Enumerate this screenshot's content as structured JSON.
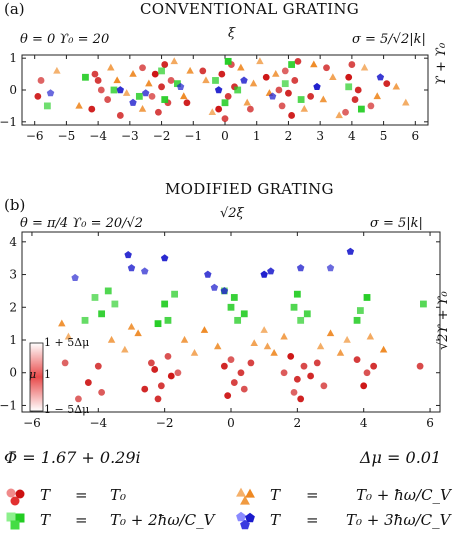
{
  "figure": {
    "panel_a": {
      "label": "(a)",
      "title": "CONVENTIONAL GRATING",
      "params_left": "θ = 0  ϒ₀ = 20",
      "xlabel": "ξ",
      "params_right": "σ = 5/√2|k|",
      "ylabel": "ϒ + ϒ₀"
    },
    "panel_b": {
      "label": "(b)",
      "title": "MODIFIED GRATING",
      "params_left": "θ = π/4   ϒ₀ = 20/√2",
      "xlabel": "√2ξ",
      "params_right": "σ = 5|k|",
      "ylabel": "√2ϒ + ϒ₀",
      "colorbar": {
        "top_label": "1 + 5Δμ",
        "mid_label": "μ",
        "mid_value": "1",
        "bottom_label": "1 − 5Δμ"
      }
    },
    "phi_label": "Φ̄ = 1.67 + 0.29i",
    "dmu_label": "Δμ = 0.01",
    "legend": [
      {
        "lhs": "T",
        "eq": "=",
        "rhs": "T₀",
        "color": "#cc1111",
        "marker": "circle"
      },
      {
        "lhs": "T",
        "eq": "=",
        "rhs": "T₀ + ħω/C_V",
        "color": "#ee8822",
        "marker": "triangle"
      },
      {
        "lhs": "T",
        "eq": "=",
        "rhs": "T₀ + 2ħω/C_V",
        "color": "#22cc22",
        "marker": "square"
      },
      {
        "lhs": "T",
        "eq": "=",
        "rhs": "T₀ + 3ħω/C_V",
        "color": "#1a1acc",
        "marker": "pentagon"
      }
    ]
  },
  "chart_data": [
    {
      "type": "scatter",
      "title": "CONVENTIONAL GRATING",
      "xlabel": "ξ",
      "ylabel": "ϒ + ϒ₀",
      "xlim": [
        -6.4,
        6.4
      ],
      "ylim": [
        -1.1,
        1.1
      ],
      "xticks": [
        -6,
        -5,
        -4,
        -3,
        -2,
        -1,
        0,
        1,
        2,
        3,
        4,
        5,
        6
      ],
      "yticks": [
        -1,
        0,
        1
      ],
      "series": [
        {
          "marker": "circle",
          "color": "#cc1111",
          "points": [
            [
              -5.8,
              0.3
            ],
            [
              -5.9,
              -0.2
            ],
            [
              -4.1,
              0.5
            ],
            [
              -3.9,
              0.0
            ],
            [
              -4.2,
              -0.6
            ],
            [
              -4.0,
              0.3
            ],
            [
              -3.7,
              -0.3
            ],
            [
              -2.2,
              0.5
            ],
            [
              -2.0,
              0.1
            ],
            [
              -1.8,
              -0.4
            ],
            [
              -2.3,
              -0.2
            ],
            [
              -1.9,
              0.8
            ],
            [
              -2.1,
              -0.7
            ],
            [
              -1.7,
              0.3
            ],
            [
              -0.1,
              0.5
            ],
            [
              0.1,
              -0.2
            ],
            [
              0.2,
              0.8
            ],
            [
              -0.2,
              -0.6
            ],
            [
              0.3,
              0.1
            ],
            [
              0.0,
              -0.9
            ],
            [
              1.9,
              0.6
            ],
            [
              2.0,
              -0.1
            ],
            [
              2.2,
              0.3
            ],
            [
              1.8,
              -0.5
            ],
            [
              2.1,
              -0.8
            ],
            [
              2.3,
              0.9
            ],
            [
              1.7,
              0.0
            ],
            [
              3.9,
              0.4
            ],
            [
              4.1,
              -0.3
            ],
            [
              4.0,
              0.8
            ],
            [
              3.8,
              -0.7
            ],
            [
              4.2,
              0.0
            ],
            [
              -3.3,
              -0.8
            ],
            [
              -2.6,
              0.7
            ],
            [
              -1.2,
              -0.4
            ],
            [
              -0.7,
              0.6
            ],
            [
              0.8,
              -0.6
            ],
            [
              1.3,
              0.4
            ],
            [
              2.7,
              -0.2
            ],
            [
              3.2,
              0.7
            ],
            [
              4.6,
              -0.5
            ],
            [
              5.1,
              0.2
            ]
          ]
        },
        {
          "marker": "triangle",
          "color": "#ee8822",
          "points": [
            [
              -5.3,
              0.6
            ],
            [
              -4.6,
              -0.5
            ],
            [
              -3.6,
              0.7
            ],
            [
              -3.1,
              -0.1
            ],
            [
              -2.9,
              0.5
            ],
            [
              -2.6,
              -0.6
            ],
            [
              -1.6,
              0.9
            ],
            [
              -1.3,
              -0.2
            ],
            [
              -1.1,
              0.6
            ],
            [
              -0.6,
              0.3
            ],
            [
              -0.4,
              -0.7
            ],
            [
              0.5,
              0.7
            ],
            [
              0.7,
              -0.4
            ],
            [
              1.1,
              0.9
            ],
            [
              1.4,
              -0.1
            ],
            [
              1.6,
              0.5
            ],
            [
              2.5,
              -0.6
            ],
            [
              2.8,
              0.8
            ],
            [
              3.1,
              -0.3
            ],
            [
              3.4,
              0.4
            ],
            [
              4.4,
              0.7
            ],
            [
              4.8,
              -0.2
            ],
            [
              5.4,
              0.1
            ],
            [
              5.7,
              -0.4
            ],
            [
              -2.4,
              0.2
            ],
            [
              0.9,
              0.2
            ],
            [
              3.6,
              -0.8
            ],
            [
              -3.4,
              0.3
            ]
          ]
        },
        {
          "marker": "square",
          "color": "#22cc22",
          "points": [
            [
              -5.6,
              -0.5
            ],
            [
              -4.4,
              0.4
            ],
            [
              -3.5,
              0.0
            ],
            [
              -2.0,
              0.6
            ],
            [
              -1.9,
              -0.3
            ],
            [
              -1.5,
              0.2
            ],
            [
              -0.3,
              0.3
            ],
            [
              0.1,
              0.9
            ],
            [
              0.0,
              -0.4
            ],
            [
              0.4,
              0.0
            ],
            [
              1.9,
              0.2
            ],
            [
              2.1,
              0.8
            ],
            [
              2.4,
              -0.3
            ],
            [
              3.9,
              0.1
            ],
            [
              4.3,
              -0.6
            ],
            [
              -2.7,
              -0.2
            ]
          ]
        },
        {
          "marker": "pentagon",
          "color": "#1a1acc",
          "points": [
            [
              -5.5,
              -0.1
            ],
            [
              -3.3,
              0.0
            ],
            [
              -2.9,
              -0.4
            ],
            [
              -1.4,
              0.1
            ],
            [
              -0.2,
              0.0
            ],
            [
              0.6,
              0.3
            ],
            [
              1.5,
              -0.2
            ],
            [
              2.9,
              0.1
            ],
            [
              4.9,
              0.4
            ],
            [
              -2.5,
              -0.1
            ]
          ]
        }
      ]
    },
    {
      "type": "scatter",
      "title": "MODIFIED GRATING",
      "xlabel": "√2ξ",
      "ylabel": "√2ϒ + ϒ₀",
      "xlim": [
        -6.3,
        6.3
      ],
      "ylim": [
        -1.2,
        4.3
      ],
      "xticks": [
        -6,
        -4,
        -2,
        0,
        2,
        4,
        6
      ],
      "yticks": [
        -1,
        0,
        1,
        2,
        3,
        4
      ],
      "series": [
        {
          "marker": "circle",
          "color": "#cc1111",
          "points": [
            [
              -5.0,
              0.3
            ],
            [
              -4.3,
              -0.3
            ],
            [
              -4.0,
              0.2
            ],
            [
              -3.9,
              -0.6
            ],
            [
              -2.3,
              0.1
            ],
            [
              -2.1,
              -0.4
            ],
            [
              -1.9,
              0.5
            ],
            [
              -1.8,
              -0.1
            ],
            [
              -2.2,
              -0.8
            ],
            [
              -2.4,
              0.3
            ],
            [
              -1.6,
              0.0
            ],
            [
              -0.2,
              0.2
            ],
            [
              0.1,
              -0.3
            ],
            [
              0.0,
              0.4
            ],
            [
              -0.1,
              -0.7
            ],
            [
              0.3,
              0.0
            ],
            [
              0.4,
              -0.5
            ],
            [
              1.8,
              0.5
            ],
            [
              2.0,
              -0.2
            ],
            [
              2.2,
              0.2
            ],
            [
              1.9,
              -0.6
            ],
            [
              2.4,
              -0.1
            ],
            [
              2.6,
              0.3
            ],
            [
              1.6,
              0.0
            ],
            [
              2.1,
              -0.8
            ],
            [
              3.8,
              0.4
            ],
            [
              4.1,
              0.0
            ],
            [
              4.0,
              -0.4
            ],
            [
              4.3,
              0.2
            ],
            [
              5.7,
              0.2
            ],
            [
              -4.6,
              -0.8
            ],
            [
              -2.6,
              -0.5
            ],
            [
              0.6,
              0.3
            ],
            [
              2.8,
              -0.4
            ]
          ]
        },
        {
          "marker": "triangle",
          "color": "#ee8822",
          "points": [
            [
              -4.9,
              1.1
            ],
            [
              -5.1,
              1.5
            ],
            [
              -3.6,
              1.0
            ],
            [
              -3.2,
              0.7
            ],
            [
              -2.8,
              1.2
            ],
            [
              -1.4,
              1.0
            ],
            [
              -1.1,
              0.6
            ],
            [
              -0.8,
              1.3
            ],
            [
              -0.4,
              0.8
            ],
            [
              0.7,
              0.9
            ],
            [
              1.0,
              1.3
            ],
            [
              1.3,
              0.6
            ],
            [
              1.6,
              1.1
            ],
            [
              2.7,
              0.8
            ],
            [
              3.0,
              1.2
            ],
            [
              3.3,
              0.6
            ],
            [
              4.2,
              1.1
            ],
            [
              4.6,
              0.7
            ],
            [
              -3.0,
              1.4
            ],
            [
              1.1,
              0.8
            ],
            [
              3.5,
              1.0
            ]
          ]
        },
        {
          "marker": "square",
          "color": "#22cc22",
          "points": [
            [
              -4.1,
              2.3
            ],
            [
              -3.9,
              1.8
            ],
            [
              -3.7,
              2.5
            ],
            [
              -4.4,
              1.6
            ],
            [
              -2.0,
              2.1
            ],
            [
              -1.9,
              1.6
            ],
            [
              -1.7,
              2.4
            ],
            [
              -2.2,
              1.5
            ],
            [
              0.0,
              2.0
            ],
            [
              0.2,
              1.6
            ],
            [
              -0.2,
              2.5
            ],
            [
              0.1,
              2.3
            ],
            [
              1.9,
              2.0
            ],
            [
              2.1,
              1.6
            ],
            [
              2.0,
              2.4
            ],
            [
              2.3,
              1.8
            ],
            [
              3.9,
              1.9
            ],
            [
              4.1,
              2.3
            ],
            [
              3.8,
              1.6
            ],
            [
              5.8,
              2.1
            ],
            [
              -3.5,
              2.1
            ],
            [
              0.4,
              1.8
            ]
          ]
        },
        {
          "marker": "pentagon",
          "color": "#1a1acc",
          "points": [
            [
              -4.7,
              2.9
            ],
            [
              -3.1,
              3.6
            ],
            [
              -3.0,
              3.2
            ],
            [
              -2.6,
              3.1
            ],
            [
              -2.0,
              3.5
            ],
            [
              -0.7,
              3.0
            ],
            [
              -0.5,
              2.6
            ],
            [
              1.0,
              3.0
            ],
            [
              1.2,
              3.1
            ],
            [
              2.1,
              3.2
            ],
            [
              3.0,
              3.2
            ],
            [
              3.6,
              3.7
            ],
            [
              -0.2,
              2.5
            ]
          ]
        }
      ]
    }
  ]
}
